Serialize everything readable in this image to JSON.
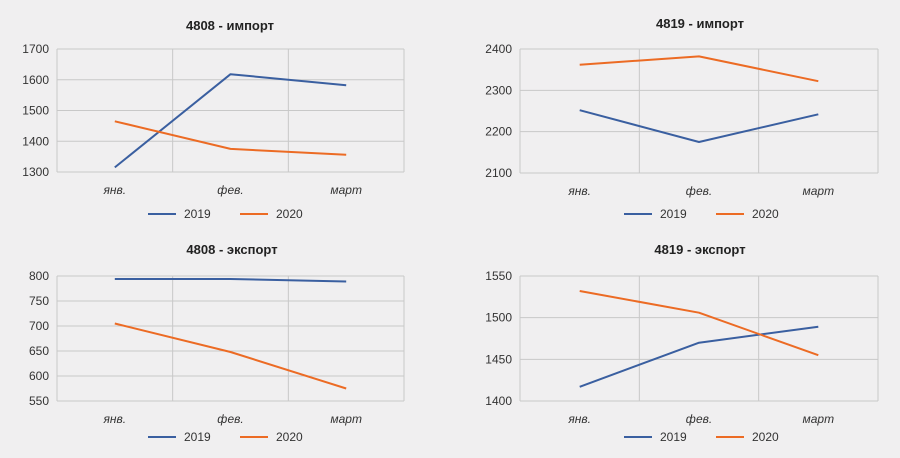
{
  "colors": {
    "series_2019": "#3a5fa0",
    "series_2020": "#ec6b24",
    "grid": "#c8c8c8"
  },
  "chart_data": [
    {
      "type": "line",
      "title": "4808 - импорт",
      "categories": [
        "янв.",
        "фев.",
        "март"
      ],
      "series": [
        {
          "name": "2019",
          "values": [
            1315,
            1618,
            1582
          ]
        },
        {
          "name": "2020",
          "values": [
            1465,
            1375,
            1356
          ]
        }
      ],
      "yticks": [
        1300,
        1400,
        1500,
        1600,
        1700
      ],
      "ylim": [
        1300,
        1700
      ],
      "grid": true,
      "legend": "bottom"
    },
    {
      "type": "line",
      "title": "4819 - импорт",
      "categories": [
        "янв.",
        "фев.",
        "март"
      ],
      "series": [
        {
          "name": "2019",
          "values": [
            2252,
            2175,
            2242
          ]
        },
        {
          "name": "2020",
          "values": [
            2362,
            2382,
            2322
          ]
        }
      ],
      "yticks": [
        2100,
        2200,
        2300,
        2400
      ],
      "ylim": [
        2100,
        2400
      ],
      "grid": true,
      "legend": "bottom"
    },
    {
      "type": "line",
      "title": "4808 - экспорт",
      "categories": [
        "янв.",
        "фев.",
        "март"
      ],
      "series": [
        {
          "name": "2019",
          "values": [
            794,
            794,
            789
          ]
        },
        {
          "name": "2020",
          "values": [
            705,
            648,
            575
          ]
        }
      ],
      "yticks": [
        550,
        600,
        650,
        700,
        750,
        800
      ],
      "ylim": [
        550,
        800
      ],
      "grid": true,
      "legend": "bottom"
    },
    {
      "type": "line",
      "title": "4819 - экспорт",
      "categories": [
        "янв.",
        "фев.",
        "март"
      ],
      "series": [
        {
          "name": "2019",
          "values": [
            1417,
            1470,
            1489
          ]
        },
        {
          "name": "2020",
          "values": [
            1532,
            1506,
            1455
          ]
        }
      ],
      "yticks": [
        1400,
        1450,
        1500,
        1550
      ],
      "ylim": [
        1400,
        1550
      ],
      "grid": true,
      "legend": "bottom"
    }
  ]
}
